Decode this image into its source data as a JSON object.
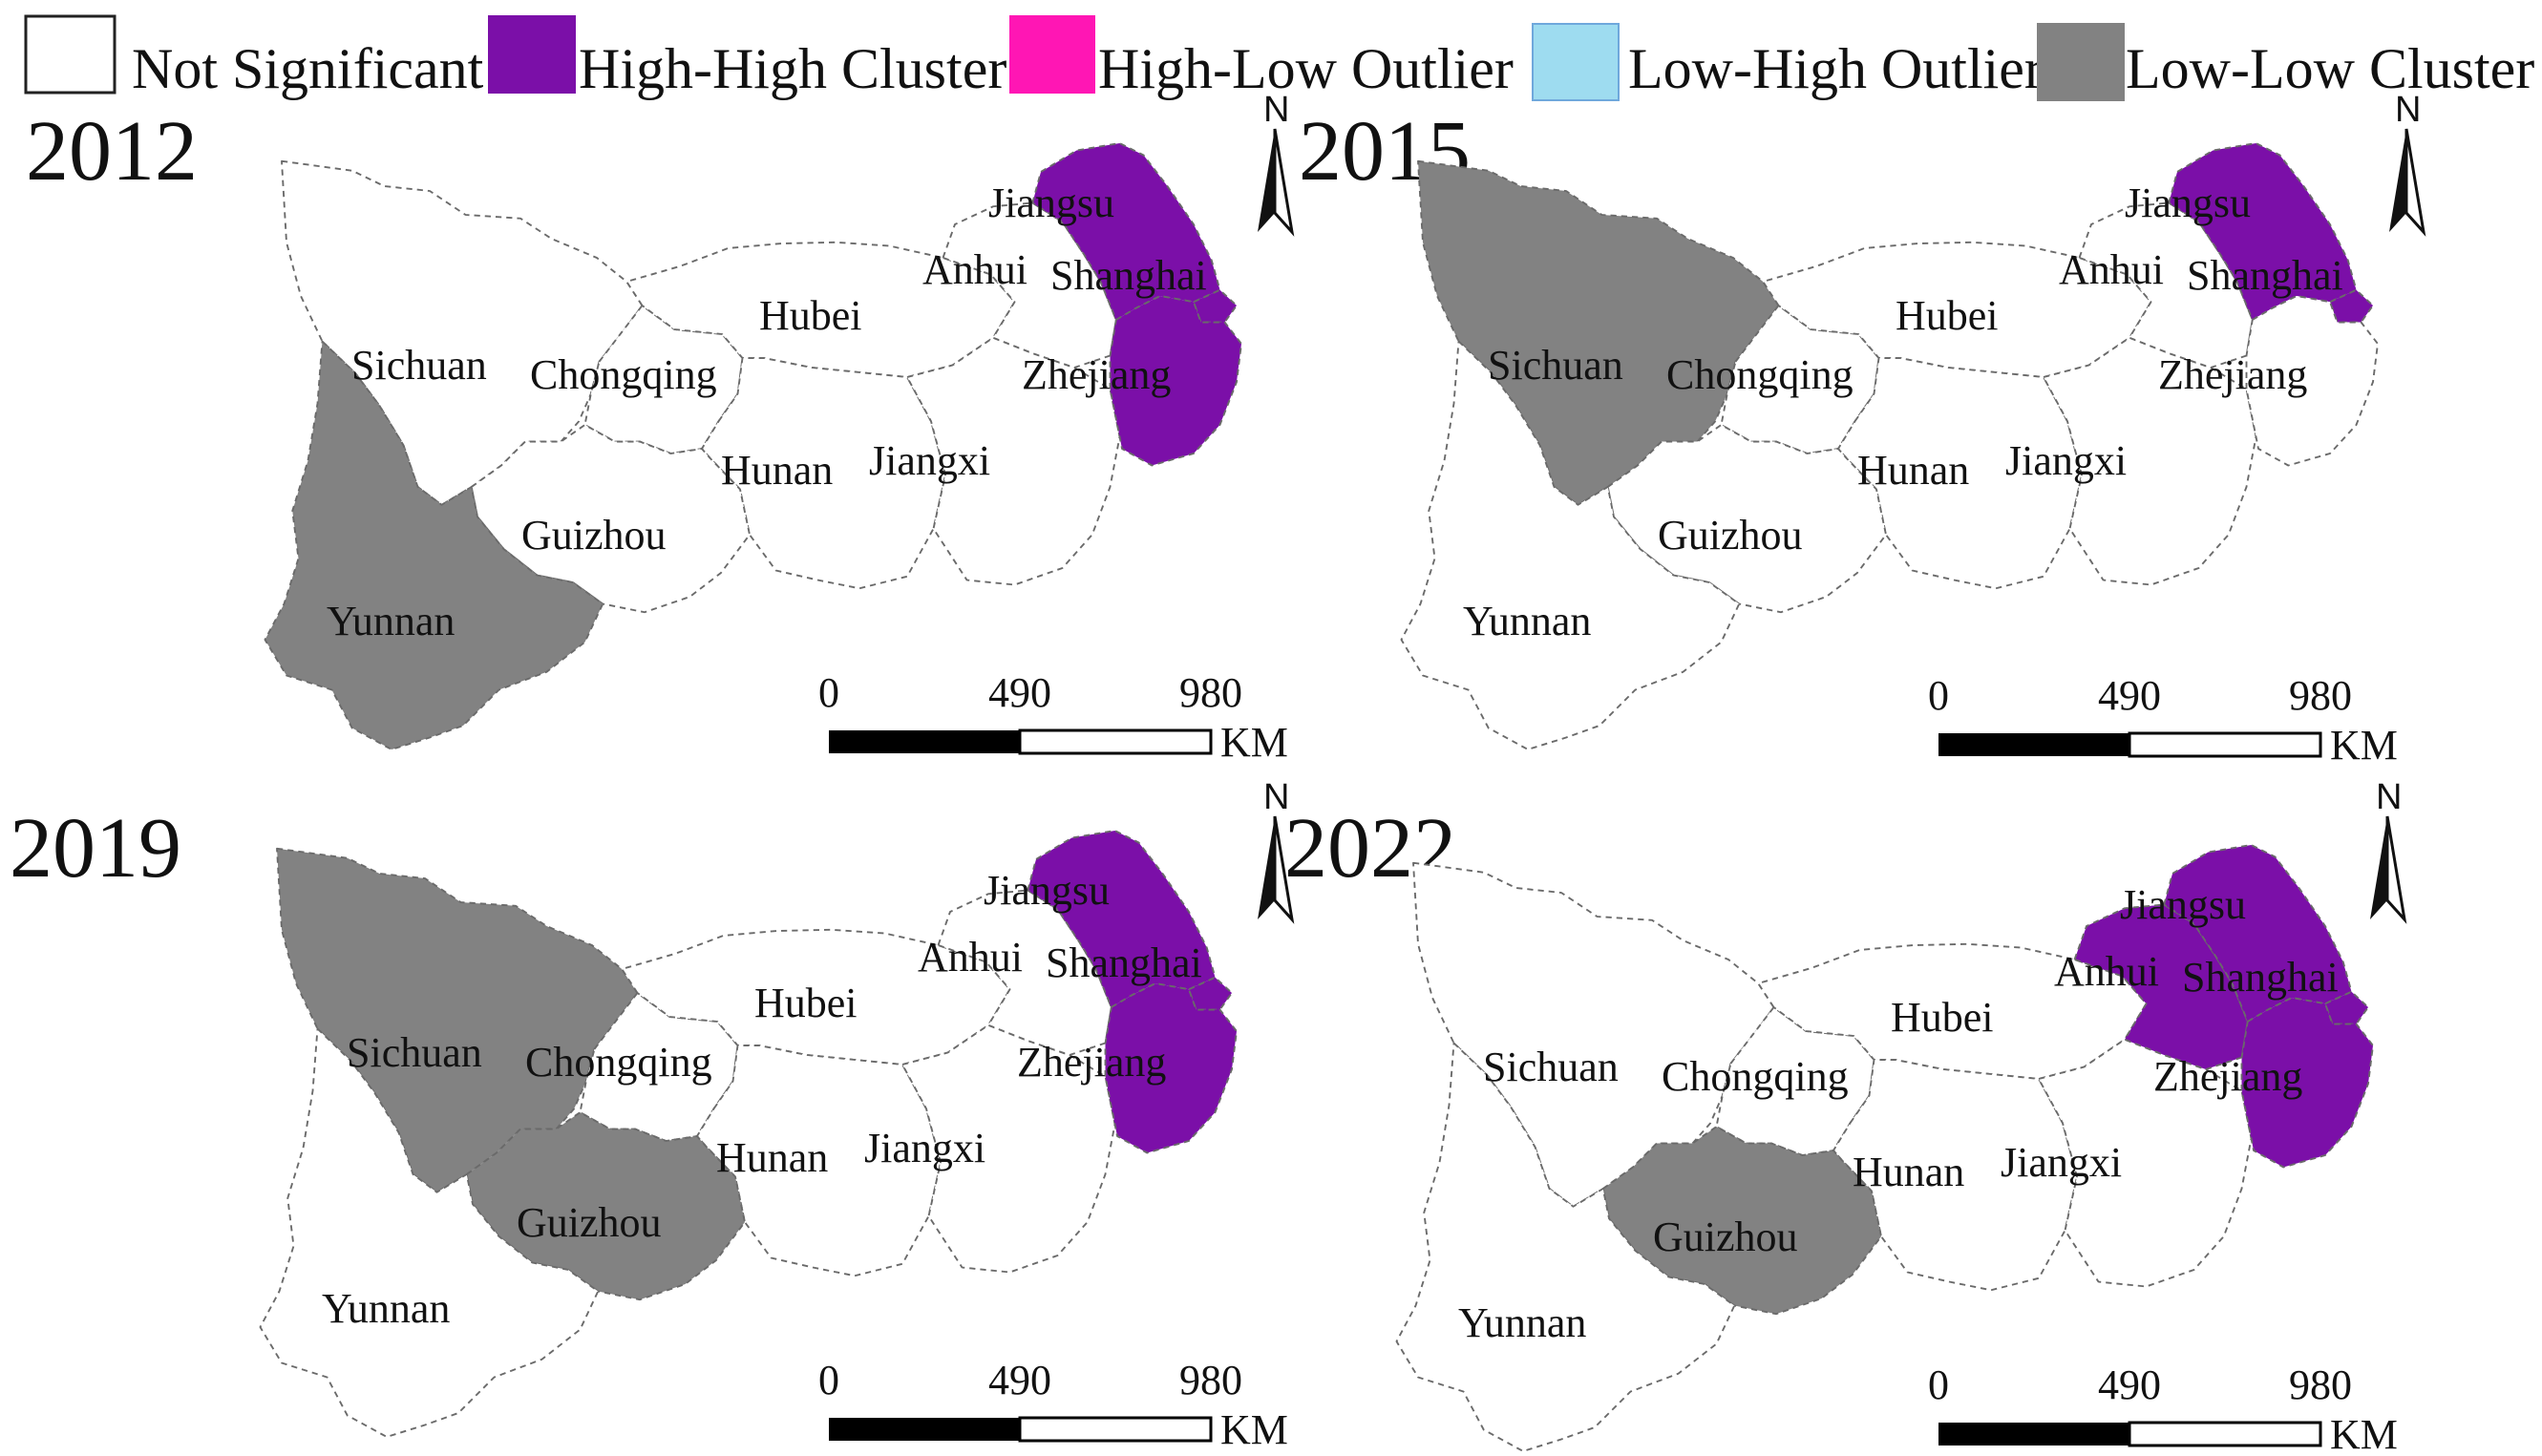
{
  "legend": {
    "items": [
      {
        "label": "Not Significant",
        "color": "#ffffff",
        "border": "#222222"
      },
      {
        "label": "High-High Cluster",
        "color": "#7b0fa8",
        "border": "#7b0fa8"
      },
      {
        "label": "High-Low Outlier",
        "color": "#ff16b4",
        "border": "#ff16b4"
      },
      {
        "label": "Low-High Outlier",
        "color": "#9edcf0",
        "border": "#6fa8dc"
      },
      {
        "label": "Low-Low Cluster",
        "color": "#828282",
        "border": "#828282"
      }
    ]
  },
  "map_common": {
    "north_label": "N",
    "scale_ticks": [
      "0",
      "490",
      "980"
    ],
    "scale_unit": "KM",
    "province_names": {
      "sichuan": "Sichuan",
      "chongqing": "Chongqing",
      "hubei": "Hubei",
      "hunan": "Hunan",
      "guizhou": "Guizhou",
      "yunnan": "Yunnan",
      "jiangxi": "Jiangxi",
      "anhui": "Anhui",
      "jiangsu": "Jiangsu",
      "shanghai": "Shanghai",
      "zhejiang": "Zhejiang"
    }
  },
  "panels": [
    {
      "year": "2012",
      "classes": {
        "sichuan": "ns",
        "chongqing": "ns",
        "hubei": "ns",
        "hunan": "ns",
        "guizhou": "ns",
        "yunnan": "ll",
        "jiangxi": "ns",
        "anhui": "ns",
        "jiangsu": "hh",
        "shanghai": "hh",
        "zhejiang": "hh"
      }
    },
    {
      "year": "2015",
      "classes": {
        "sichuan": "ll",
        "chongqing": "ns",
        "hubei": "ns",
        "hunan": "ns",
        "guizhou": "ns",
        "yunnan": "ns",
        "jiangxi": "ns",
        "anhui": "ns",
        "jiangsu": "hh",
        "shanghai": "hh",
        "zhejiang": "ns"
      }
    },
    {
      "year": "2019",
      "classes": {
        "sichuan": "ll",
        "chongqing": "ns",
        "hubei": "ns",
        "hunan": "ns",
        "guizhou": "ll",
        "yunnan": "ns",
        "jiangxi": "ns",
        "anhui": "ns",
        "jiangsu": "hh",
        "shanghai": "hh",
        "zhejiang": "hh"
      }
    },
    {
      "year": "2022",
      "classes": {
        "sichuan": "ns",
        "chongqing": "ns",
        "hubei": "ns",
        "hunan": "ns",
        "guizhou": "ll",
        "yunnan": "ns",
        "jiangxi": "ns",
        "anhui": "hh",
        "jiangsu": "hh",
        "shanghai": "hh",
        "zhejiang": "hh"
      }
    }
  ]
}
